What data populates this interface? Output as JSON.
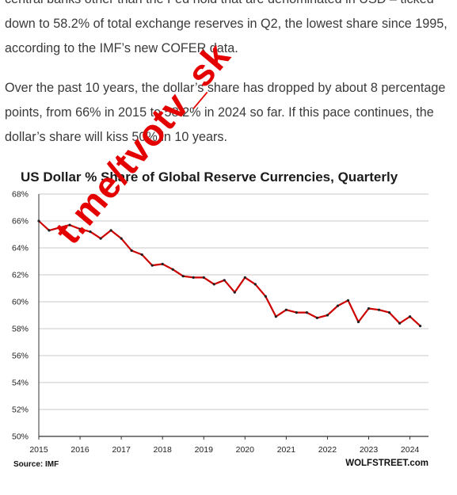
{
  "article": {
    "paragraph_1": "central banks other than the Fed hold that are denominated in USD – ticked down to 58.2% of total exchange reserves in Q2, the lowest share since 1995, according to the IMF’s new COFER data.",
    "paragraph_2": "Over the past 10 years, the dollar’s share has dropped by about 8 percentage points, from 66% in 2015 to 58.2% in 2024 so far. If this pace continues, the dollar’s share will kiss 50% in 10 years."
  },
  "watermark": "t.me/tvotv_sk",
  "chart_data": {
    "type": "line",
    "title": "US Dollar % Share of Global Reserve Currencies, Quarterly",
    "ylim": [
      50,
      68
    ],
    "y_ticks": [
      "50%",
      "52%",
      "54%",
      "56%",
      "58%",
      "60%",
      "62%",
      "64%",
      "66%",
      "68%"
    ],
    "x_ticks": [
      "2015",
      "2016",
      "2017",
      "2018",
      "2019",
      "2020",
      "2021",
      "2022",
      "2023",
      "2024"
    ],
    "grid": true,
    "series": [
      {
        "color": "#cc0000",
        "x": [
          2015.0,
          2015.25,
          2015.5,
          2015.75,
          2016.0,
          2016.25,
          2016.5,
          2016.75,
          2017.0,
          2017.25,
          2017.5,
          2017.75,
          2018.0,
          2018.25,
          2018.5,
          2018.75,
          2019.0,
          2019.25,
          2019.5,
          2019.75,
          2020.0,
          2020.25,
          2020.5,
          2020.75,
          2021.0,
          2021.25,
          2021.5,
          2021.75,
          2022.0,
          2022.25,
          2022.5,
          2022.75,
          2023.0,
          2023.25,
          2023.5,
          2023.75,
          2024.0,
          2024.25
        ],
        "values": [
          66.0,
          65.3,
          65.5,
          65.7,
          65.4,
          65.2,
          64.7,
          65.3,
          64.7,
          63.8,
          63.5,
          62.7,
          62.8,
          62.4,
          61.9,
          61.8,
          61.8,
          61.3,
          61.6,
          60.7,
          61.8,
          61.3,
          60.4,
          58.9,
          59.4,
          59.2,
          59.2,
          58.8,
          59.0,
          59.7,
          60.1,
          58.5,
          59.5,
          59.4,
          59.2,
          58.4,
          58.9,
          58.2
        ]
      }
    ],
    "source": "Source: IMF",
    "brand": "WOLFSTREET.com"
  }
}
